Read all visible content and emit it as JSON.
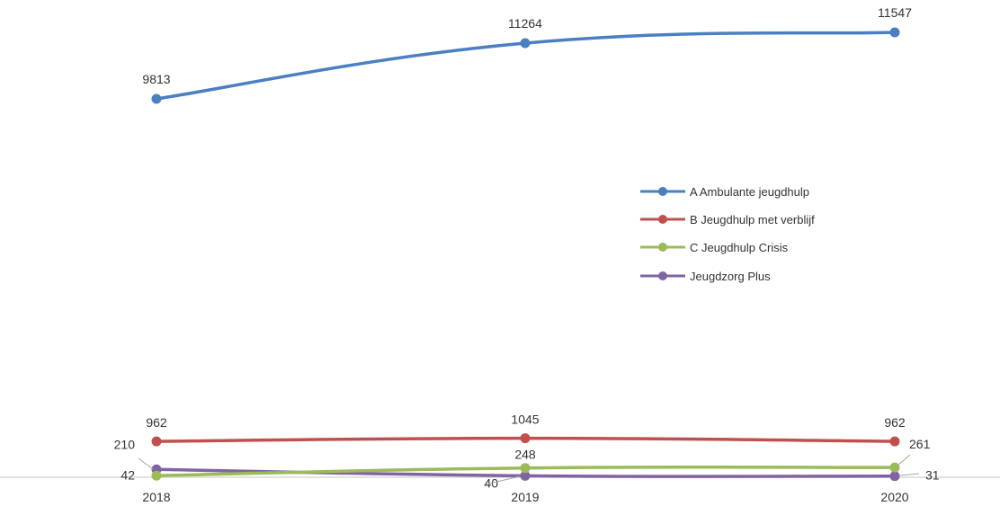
{
  "chart_data": {
    "type": "line",
    "title": "",
    "xlabel": "",
    "ylabel": "",
    "categories": [
      "2018",
      "2019",
      "2020"
    ],
    "series": [
      {
        "name": "A Ambulante jeugdhulp",
        "values": [
          9813,
          11264,
          11547
        ],
        "labels": [
          "9813",
          "11264",
          "11547"
        ],
        "color": "#4a7fc1"
      },
      {
        "name": "B Jeugdhulp met verblijf",
        "values": [
          962,
          1045,
          962
        ],
        "labels": [
          "962",
          "1045",
          "962"
        ],
        "color": "#c0504d"
      },
      {
        "name": "C Jeugdhulp Crisis",
        "values": [
          42,
          248,
          261
        ],
        "labels": [
          "42",
          "248",
          "261"
        ],
        "color": "#9bbb59"
      },
      {
        "name": "Jeugdzorg Plus",
        "values": [
          210,
          40,
          31
        ],
        "labels": [
          "210",
          "40",
          "31"
        ],
        "color": "#8064a2"
      }
    ],
    "legend": "right-middle",
    "grid": false
  }
}
